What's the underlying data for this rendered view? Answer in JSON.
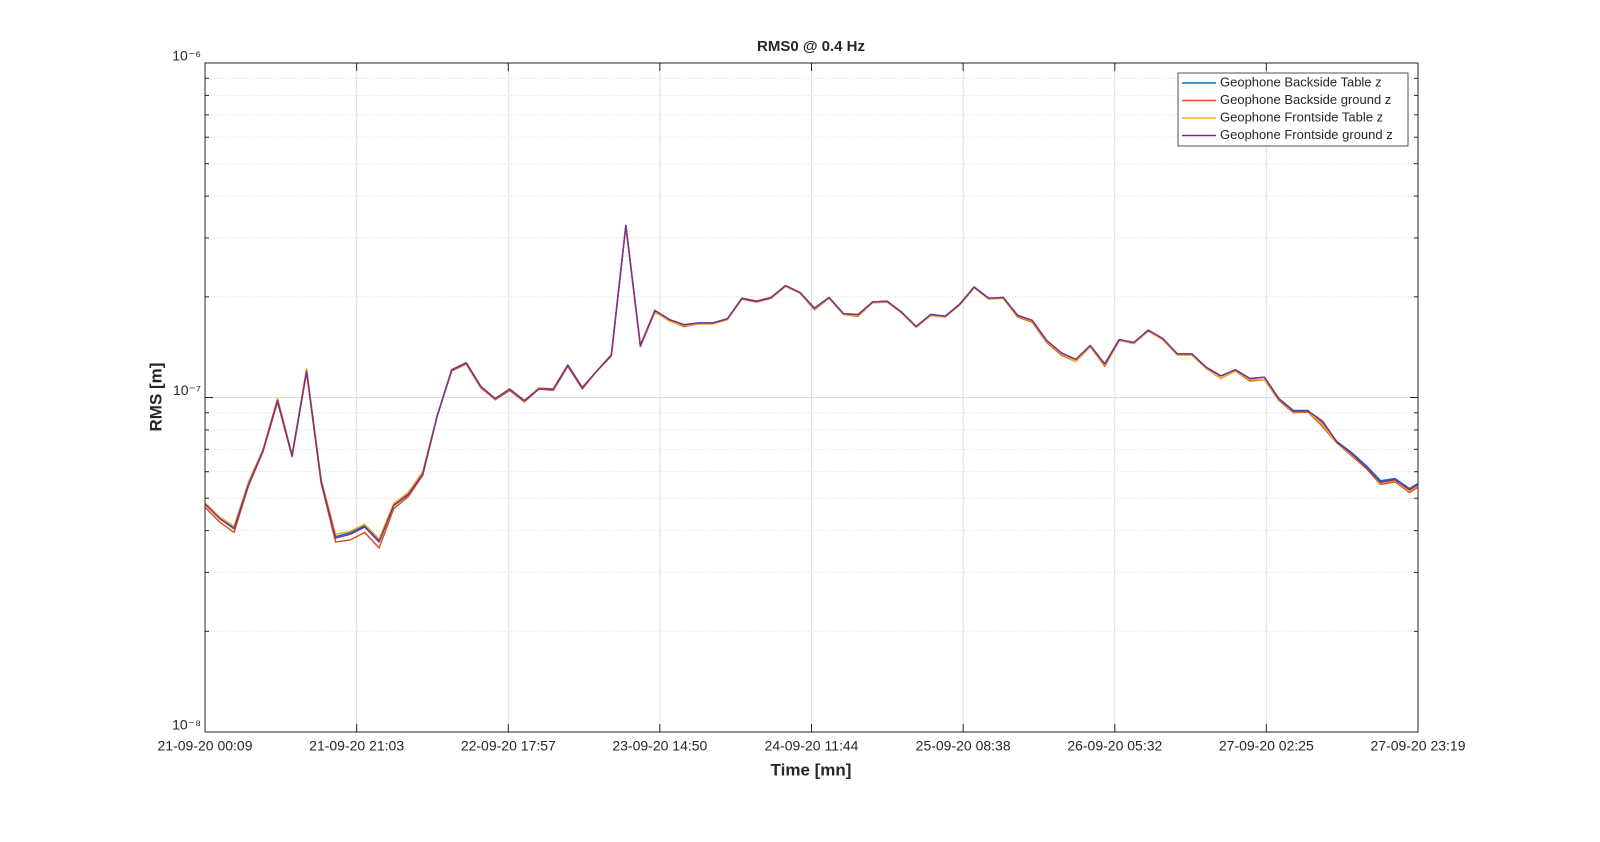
{
  "chart_data": {
    "type": "line",
    "title": "RMS0 @ 0.4 Hz",
    "xlabel": "Time [mn]",
    "ylabel": "RMS [m]",
    "x": [
      "21-09-20 00:09",
      "21-09-20 02:09",
      "21-09-20 04:09",
      "21-09-20 06:09",
      "21-09-20 08:09",
      "21-09-20 10:09",
      "21-09-20 12:09",
      "21-09-20 14:09",
      "21-09-20 16:09",
      "21-09-20 18:09",
      "21-09-20 20:09",
      "21-09-20 22:09",
      "22-09-20 00:09",
      "22-09-20 02:09",
      "22-09-20 04:09",
      "22-09-20 06:09",
      "22-09-20 08:09",
      "22-09-20 10:09",
      "22-09-20 12:09",
      "22-09-20 14:09",
      "22-09-20 16:09",
      "22-09-20 18:09",
      "22-09-20 20:09",
      "22-09-20 22:09",
      "23-09-20 00:09",
      "23-09-20 02:09",
      "23-09-20 04:09",
      "23-09-20 06:09",
      "23-09-20 08:09",
      "23-09-20 10:09",
      "23-09-20 12:09",
      "23-09-20 14:09",
      "23-09-20 16:09",
      "23-09-20 18:09",
      "23-09-20 20:09",
      "23-09-20 22:09",
      "24-09-20 00:09",
      "24-09-20 02:09",
      "24-09-20 04:09",
      "24-09-20 06:09",
      "24-09-20 08:09",
      "24-09-20 10:09",
      "24-09-20 12:09",
      "24-09-20 14:09",
      "24-09-20 16:09",
      "24-09-20 18:09",
      "24-09-20 20:09",
      "24-09-20 22:09",
      "25-09-20 00:09",
      "25-09-20 02:09",
      "25-09-20 04:09",
      "25-09-20 06:09",
      "25-09-20 08:09",
      "25-09-20 10:09",
      "25-09-20 12:09",
      "25-09-20 14:09",
      "25-09-20 16:09",
      "25-09-20 18:09",
      "25-09-20 20:09",
      "25-09-20 22:09",
      "26-09-20 00:09",
      "26-09-20 02:09",
      "26-09-20 04:09",
      "26-09-20 06:09",
      "26-09-20 08:09",
      "26-09-20 10:09",
      "26-09-20 12:09",
      "26-09-20 14:09",
      "26-09-20 16:09",
      "26-09-20 18:09",
      "26-09-20 20:09",
      "26-09-20 22:09",
      "27-09-20 00:09",
      "27-09-20 02:09",
      "27-09-20 04:09",
      "27-09-20 06:09",
      "27-09-20 08:09",
      "27-09-20 10:09",
      "27-09-20 12:09",
      "27-09-20 14:09",
      "27-09-20 16:09",
      "27-09-20 18:09",
      "27-09-20 20:09",
      "27-09-20 22:09",
      "27-09-20 23:19"
    ],
    "series": [
      {
        "name": "Geophone Backside Table z",
        "color": "#0072BD",
        "values": [
          4.82e-08,
          4.37e-08,
          4.08e-08,
          5.53e-08,
          6.94e-08,
          9.79e-08,
          6.71e-08,
          1.2e-07,
          5.64e-08,
          3.84e-08,
          3.94e-08,
          4.14e-08,
          3.73e-08,
          4.78e-08,
          5.16e-08,
          5.96e-08,
          8.83e-08,
          1.21e-07,
          1.27e-07,
          1.08e-07,
          9.93e-08,
          1.06e-07,
          9.79e-08,
          1.06e-07,
          1.06e-07,
          1.25e-07,
          1.07e-07,
          1.2e-07,
          1.34e-07,
          3.27e-07,
          1.43e-07,
          1.82e-07,
          1.71e-07,
          1.65e-07,
          1.67e-07,
          1.67e-07,
          1.72e-07,
          1.98e-07,
          1.94e-07,
          1.99e-07,
          2.16e-07,
          2.06e-07,
          1.85e-07,
          1.99e-07,
          1.78e-07,
          1.77e-07,
          1.93e-07,
          1.94e-07,
          1.8e-07,
          1.63e-07,
          1.77e-07,
          1.75e-07,
          1.9e-07,
          2.14e-07,
          1.98e-07,
          1.99e-07,
          1.76e-07,
          1.7e-07,
          1.48e-07,
          1.36e-07,
          1.3e-07,
          1.43e-07,
          1.26e-07,
          1.49e-07,
          1.46e-07,
          1.59e-07,
          1.5e-07,
          1.35e-07,
          1.35e-07,
          1.23e-07,
          1.16e-07,
          1.21e-07,
          1.14e-07,
          1.15e-07,
          9.93e-08,
          9.14e-08,
          9.14e-08,
          8.36e-08,
          7.38e-08,
          6.85e-08,
          6.26e-08,
          5.64e-08,
          5.72e-08,
          5.34e-08,
          5.53e-08
        ]
      },
      {
        "name": "Geophone Backside ground z",
        "color": "#D95319",
        "values": [
          4.7e-08,
          4.25e-08,
          3.95e-08,
          5.45e-08,
          6.9e-08,
          9.7e-08,
          6.65e-08,
          1.19e-07,
          5.55e-08,
          3.7e-08,
          3.75e-08,
          3.95e-08,
          3.55e-08,
          4.65e-08,
          5.05e-08,
          5.85e-08,
          8.8e-08,
          1.2e-07,
          1.26e-07,
          1.07e-07,
          9.85e-08,
          1.05e-07,
          9.7e-08,
          1.06e-07,
          1.05e-07,
          1.24e-07,
          1.06e-07,
          1.2e-07,
          1.33e-07,
          3.26e-07,
          1.42e-07,
          1.8e-07,
          1.7e-07,
          1.63e-07,
          1.66e-07,
          1.66e-07,
          1.71e-07,
          1.97e-07,
          1.93e-07,
          1.98e-07,
          2.15e-07,
          2.05e-07,
          1.83e-07,
          1.98e-07,
          1.77e-07,
          1.75e-07,
          1.92e-07,
          1.93e-07,
          1.79e-07,
          1.62e-07,
          1.76e-07,
          1.74e-07,
          1.89e-07,
          2.13e-07,
          1.97e-07,
          1.98e-07,
          1.74e-07,
          1.68e-07,
          1.46e-07,
          1.34e-07,
          1.28e-07,
          1.42e-07,
          1.24e-07,
          1.48e-07,
          1.45e-07,
          1.58e-07,
          1.49e-07,
          1.34e-07,
          1.34e-07,
          1.22e-07,
          1.14e-07,
          1.2e-07,
          1.12e-07,
          1.13e-07,
          9.8e-08,
          9e-08,
          9.05e-08,
          8.2e-08,
          7.3e-08,
          6.7e-08,
          6.15e-08,
          5.5e-08,
          5.6e-08,
          5.2e-08,
          5.4e-08
        ]
      },
      {
        "name": "Geophone Frontside Table z",
        "color": "#EDB120",
        "values": [
          4.85e-08,
          4.4e-08,
          4.12e-08,
          5.6e-08,
          7e-08,
          9.95e-08,
          6.75e-08,
          1.22e-07,
          5.7e-08,
          3.9e-08,
          3.98e-08,
          4.18e-08,
          3.78e-08,
          4.82e-08,
          5.2e-08,
          6e-08,
          8.85e-08,
          1.21e-07,
          1.27e-07,
          1.08e-07,
          9.9e-08,
          1.06e-07,
          9.75e-08,
          1.07e-07,
          1.06e-07,
          1.25e-07,
          1.07e-07,
          1.2e-07,
          1.34e-07,
          3.27e-07,
          1.43e-07,
          1.81e-07,
          1.69e-07,
          1.64e-07,
          1.66e-07,
          1.66e-07,
          1.71e-07,
          1.98e-07,
          1.94e-07,
          1.99e-07,
          2.15e-07,
          2.05e-07,
          1.84e-07,
          1.98e-07,
          1.77e-07,
          1.76e-07,
          1.92e-07,
          1.93e-07,
          1.79e-07,
          1.62e-07,
          1.76e-07,
          1.74e-07,
          1.89e-07,
          2.13e-07,
          1.97e-07,
          1.98e-07,
          1.75e-07,
          1.69e-07,
          1.47e-07,
          1.35e-07,
          1.28e-07,
          1.42e-07,
          1.25e-07,
          1.48e-07,
          1.45e-07,
          1.58e-07,
          1.49e-07,
          1.34e-07,
          1.34e-07,
          1.22e-07,
          1.14e-07,
          1.2e-07,
          1.13e-07,
          1.13e-07,
          9.85e-08,
          9.05e-08,
          9.1e-08,
          8.3e-08,
          7.3e-08,
          6.75e-08,
          6.2e-08,
          5.55e-08,
          5.65e-08,
          5.25e-08,
          5.45e-08
        ]
      },
      {
        "name": "Geophone Frontside ground z",
        "color": "#7E2F8E",
        "values": [
          4.8e-08,
          4.35e-08,
          4.05e-08,
          5.5e-08,
          6.95e-08,
          9.8e-08,
          6.7e-08,
          1.2e-07,
          5.62e-08,
          3.8e-08,
          3.9e-08,
          4.1e-08,
          3.7e-08,
          4.75e-08,
          5.12e-08,
          5.9e-08,
          8.8e-08,
          1.21e-07,
          1.27e-07,
          1.08e-07,
          9.92e-08,
          1.06e-07,
          9.78e-08,
          1.06e-07,
          1.06e-07,
          1.25e-07,
          1.07e-07,
          1.2e-07,
          1.34e-07,
          3.27e-07,
          1.43e-07,
          1.82e-07,
          1.71e-07,
          1.65e-07,
          1.67e-07,
          1.67e-07,
          1.72e-07,
          1.98e-07,
          1.94e-07,
          1.99e-07,
          2.16e-07,
          2.06e-07,
          1.85e-07,
          1.99e-07,
          1.78e-07,
          1.77e-07,
          1.93e-07,
          1.94e-07,
          1.8e-07,
          1.63e-07,
          1.77e-07,
          1.75e-07,
          1.9e-07,
          2.14e-07,
          1.98e-07,
          1.99e-07,
          1.76e-07,
          1.7e-07,
          1.48e-07,
          1.36e-07,
          1.3e-07,
          1.43e-07,
          1.26e-07,
          1.49e-07,
          1.46e-07,
          1.59e-07,
          1.5e-07,
          1.35e-07,
          1.35e-07,
          1.23e-07,
          1.16e-07,
          1.21e-07,
          1.14e-07,
          1.15e-07,
          9.9e-08,
          9.1e-08,
          9.12e-08,
          8.5e-08,
          7.35e-08,
          6.8e-08,
          6.2e-08,
          5.58e-08,
          5.68e-08,
          5.3e-08,
          5.5e-08
        ]
      }
    ],
    "xlim": [
      "21-09-20 00:09",
      "27-09-20 23:19"
    ],
    "xticks": [
      "21-09-20 00:09",
      "21-09-20 21:03",
      "22-09-20 17:57",
      "23-09-20 14:50",
      "24-09-20 11:44",
      "25-09-20 08:38",
      "26-09-20 05:32",
      "27-09-20 02:25",
      "27-09-20 23:19"
    ],
    "ylim": [
      1e-08,
      1e-06
    ],
    "yticks": [
      {
        "value": 1e-08,
        "label": "10⁻⁸"
      },
      {
        "value": 1e-07,
        "label": "10⁻⁷"
      },
      {
        "value": 1e-06,
        "label": "10⁻⁶"
      }
    ],
    "log_y": true,
    "grid": true,
    "minor_grid": true,
    "legend": "northeast"
  }
}
